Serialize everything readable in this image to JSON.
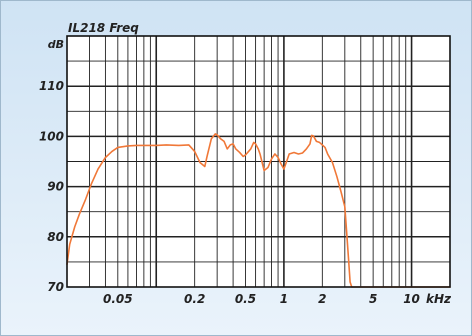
{
  "chart_data": {
    "type": "line",
    "title": "IL218 Freq",
    "ylabel": "dB",
    "xlabel": "kHz",
    "x_scale": "log",
    "xlim": [
      0.02,
      20
    ],
    "ylim": [
      70,
      120
    ],
    "grid": true,
    "x_ticks": [
      {
        "value": 0.05,
        "label": "0.05"
      },
      {
        "value": 0.2,
        "label": "0.2"
      },
      {
        "value": 0.5,
        "label": "0.5"
      },
      {
        "value": 1,
        "label": "1"
      },
      {
        "value": 2,
        "label": "2"
      },
      {
        "value": 5,
        "label": "5"
      },
      {
        "value": 10,
        "label": "10"
      }
    ],
    "y_ticks": [
      {
        "value": 70,
        "label": "70"
      },
      {
        "value": 80,
        "label": "80"
      },
      {
        "value": 90,
        "label": "90"
      },
      {
        "value": 100,
        "label": "100"
      },
      {
        "value": 110,
        "label": "110"
      }
    ],
    "series": [
      {
        "color": "#f07838",
        "x": [
          0.02,
          0.021,
          0.023,
          0.025,
          0.028,
          0.031,
          0.035,
          0.04,
          0.045,
          0.05,
          0.06,
          0.07,
          0.08,
          0.1,
          0.12,
          0.15,
          0.18,
          0.2,
          0.22,
          0.24,
          0.25,
          0.27,
          0.29,
          0.3,
          0.32,
          0.34,
          0.36,
          0.38,
          0.4,
          0.42,
          0.45,
          0.48,
          0.5,
          0.55,
          0.58,
          0.6,
          0.63,
          0.65,
          0.68,
          0.7,
          0.75,
          0.8,
          0.85,
          0.9,
          0.95,
          1.0,
          1.05,
          1.1,
          1.2,
          1.3,
          1.4,
          1.5,
          1.6,
          1.65,
          1.7,
          1.8,
          1.9,
          2.0,
          2.1,
          2.2,
          2.4,
          2.6,
          2.8,
          3.0,
          3.1,
          3.2,
          3.3,
          3.4,
          3.5,
          3.6,
          3.7,
          4,
          5,
          7,
          10,
          15,
          20
        ],
        "y": [
          74.5,
          78.5,
          82,
          84.5,
          87.5,
          90.5,
          93.5,
          95.8,
          97,
          97.8,
          98.1,
          98.2,
          98.2,
          98.2,
          98.3,
          98.2,
          98.3,
          97,
          94.8,
          94,
          96,
          99.5,
          100.5,
          100.3,
          99.5,
          99,
          97.5,
          98.3,
          98.5,
          97.5,
          96.8,
          96,
          96.3,
          97.5,
          98.8,
          98.5,
          97.5,
          96.5,
          94.5,
          93.2,
          93.8,
          95.5,
          96.5,
          95.8,
          94.5,
          93.5,
          95,
          96.5,
          96.8,
          96.5,
          96.7,
          97.5,
          98.5,
          100.2,
          100.1,
          99,
          98.8,
          98.3,
          97.8,
          96.5,
          94.8,
          92,
          89,
          86,
          81,
          76,
          71,
          70,
          70,
          70,
          70,
          70,
          70,
          70,
          70,
          70,
          70
        ]
      }
    ]
  }
}
